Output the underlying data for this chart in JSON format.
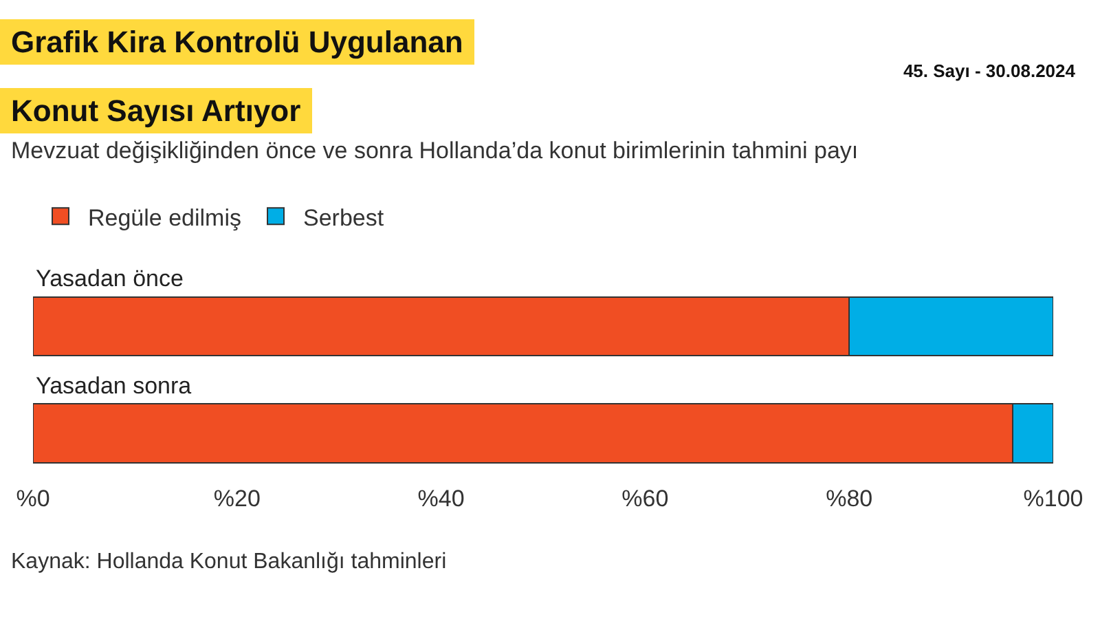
{
  "chart_data": {
    "type": "bar",
    "orientation": "horizontal",
    "stacked": true,
    "title": "Grafik Kira Kontrolü Uygulanan Konut Sayısı Artıyor",
    "subtitle": "Mevzuat değişikliğinden önce ve sonra Hollanda’da konut birimlerinin tahmini payı",
    "categories": [
      "Yasadan önce",
      "Yasadan sonra"
    ],
    "series": [
      {
        "name": "Regüle edilmiş",
        "color": "#f04e23",
        "values": [
          80,
          96
        ]
      },
      {
        "name": "Serbest",
        "color": "#00aee6",
        "values": [
          20,
          4
        ]
      }
    ],
    "xlim": [
      0,
      100
    ],
    "xticks": [
      {
        "value": 0,
        "label": "%0"
      },
      {
        "value": 20,
        "label": "%20"
      },
      {
        "value": 40,
        "label": "%40"
      },
      {
        "value": 60,
        "label": "%60"
      },
      {
        "value": 80,
        "label": "%80"
      },
      {
        "value": 100,
        "label": "%100"
      }
    ],
    "grid": false,
    "legend": "top left",
    "tick_labels": "x",
    "annotations": [
      "45. Sayı - 30.08.2024",
      "Kaynak: Hollanda Konut Bakanlığı tahminleri"
    ]
  }
}
